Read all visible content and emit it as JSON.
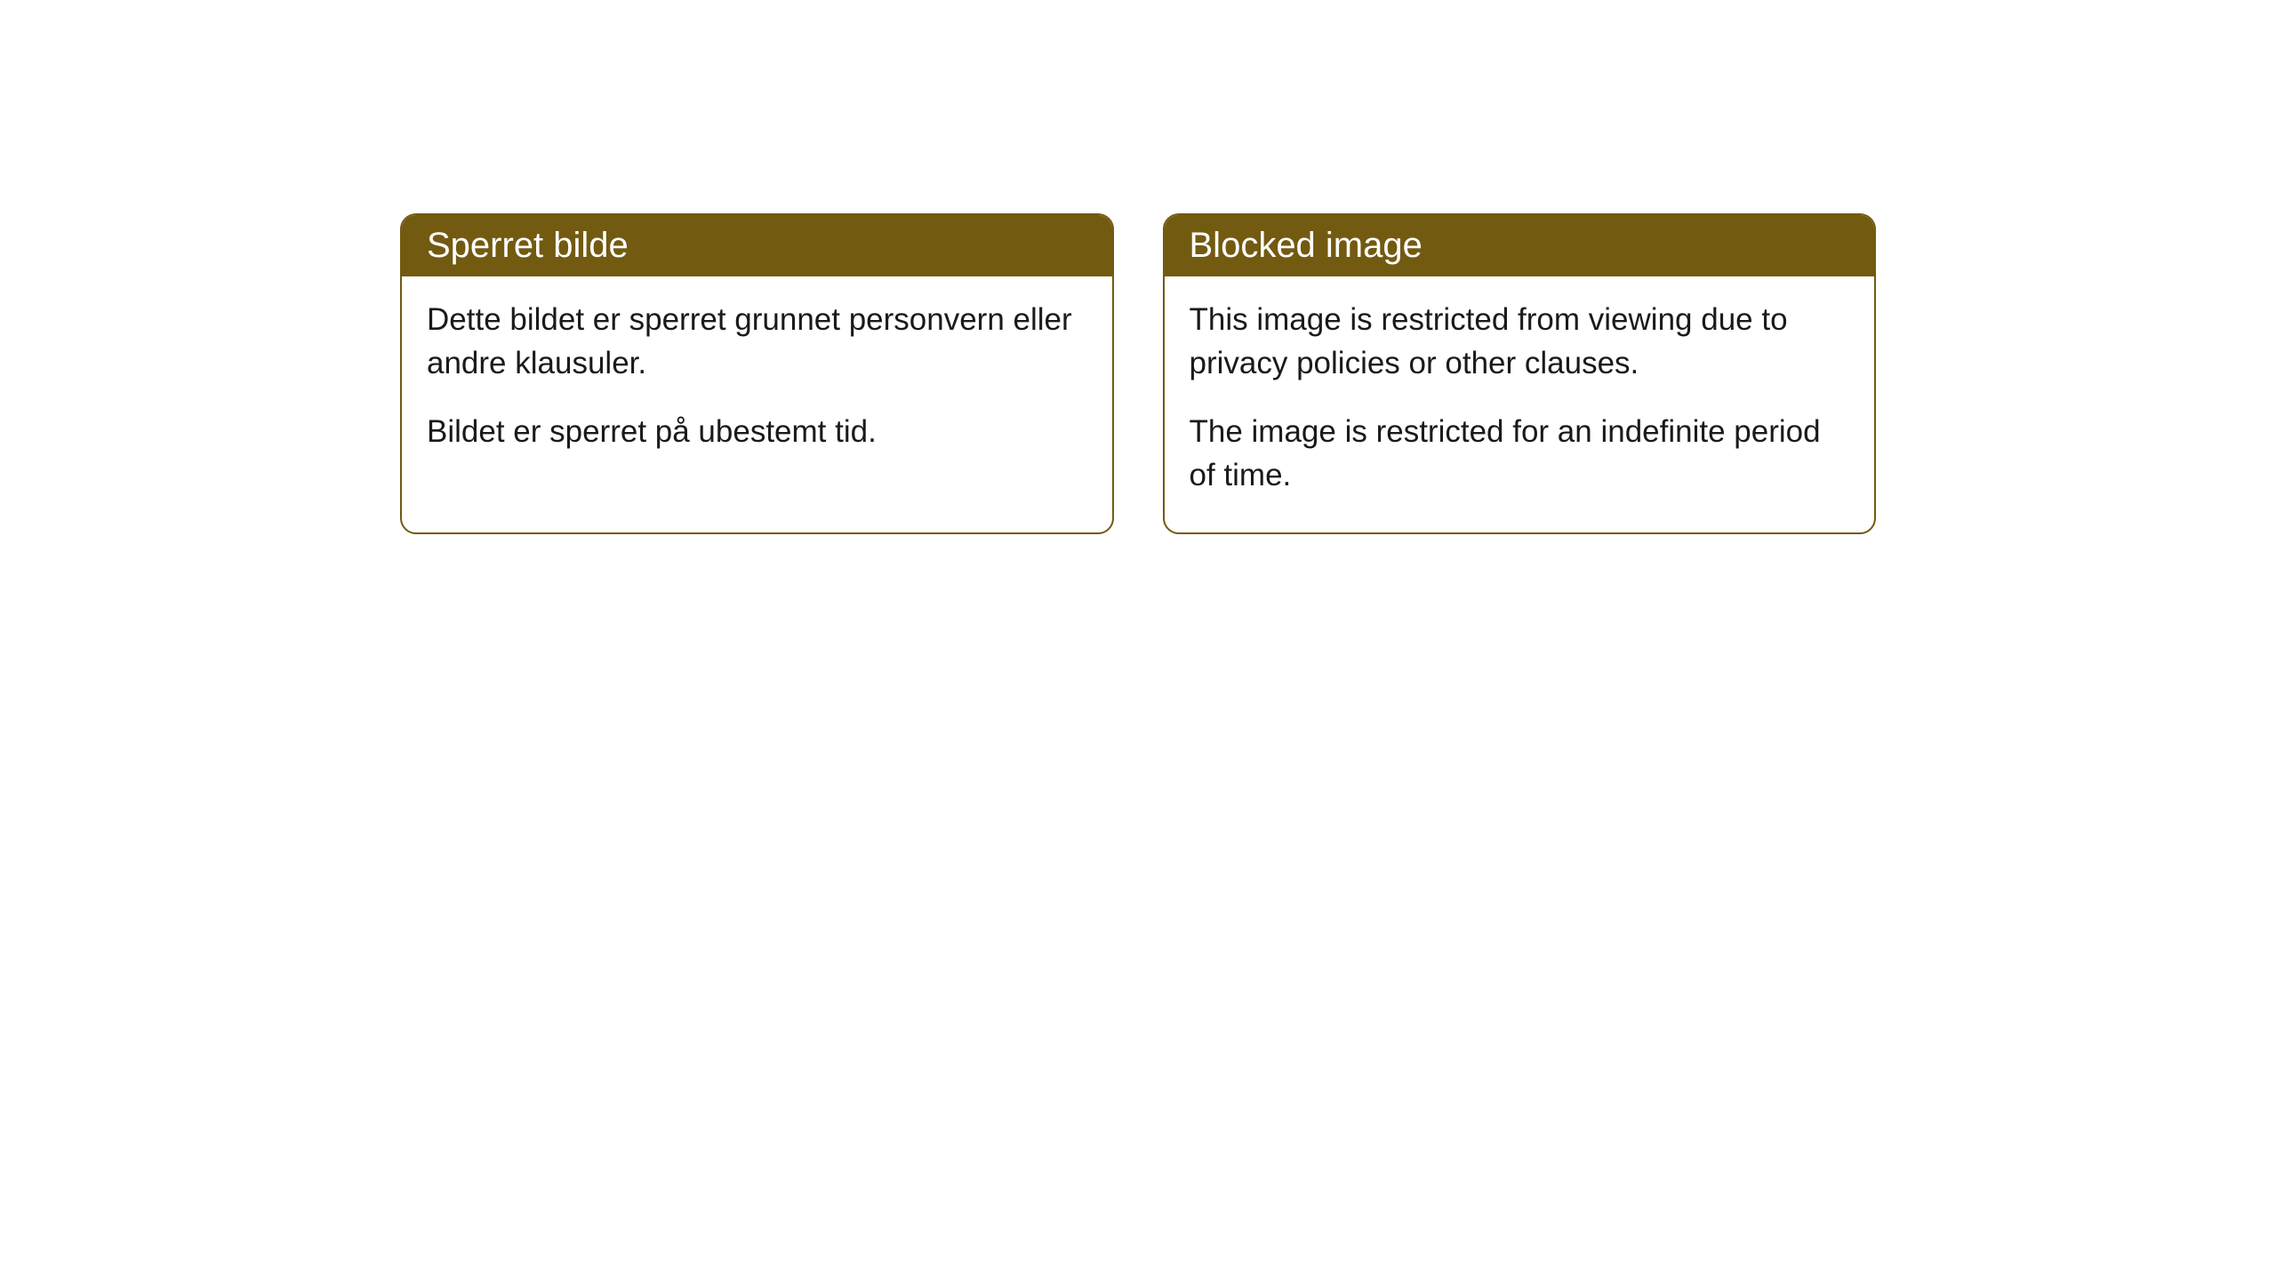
{
  "cards": [
    {
      "title": "Sperret bilde",
      "paragraph1": "Dette bildet er sperret grunnet personvern eller andre klausuler.",
      "paragraph2": "Bildet er sperret på ubestemt tid."
    },
    {
      "title": "Blocked image",
      "paragraph1": "This image is restricted from viewing due to privacy policies or other clauses.",
      "paragraph2": "The image is restricted for an indefinite period of time."
    }
  ],
  "styling": {
    "header_background": "#735a11",
    "header_text_color": "#ffffff",
    "border_color": "#735a11",
    "body_text_color": "#1a1a1a",
    "card_background": "#ffffff",
    "page_background": "#ffffff",
    "border_radius": 18,
    "header_font_size": 40,
    "body_font_size": 35
  }
}
